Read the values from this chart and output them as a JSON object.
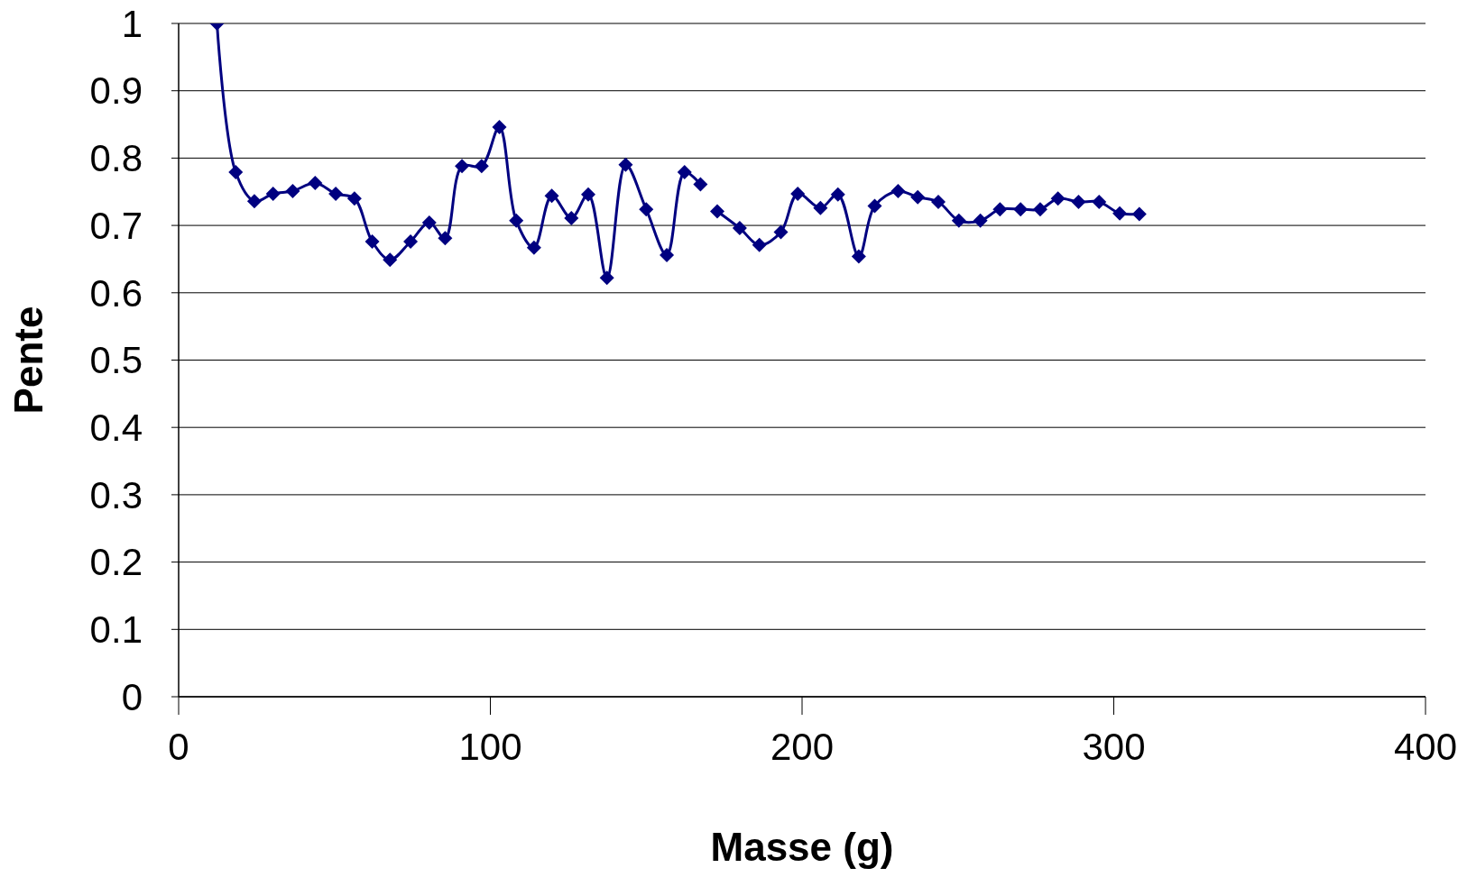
{
  "chart_data": {
    "type": "line",
    "xlabel": "Masse (g)",
    "ylabel": "Pente",
    "xlim": [
      0,
      400
    ],
    "xticks": [
      0,
      100,
      200,
      300,
      400
    ],
    "ylim": [
      0,
      1
    ],
    "yticks": [
      0,
      0.1,
      0.2,
      0.3,
      0.4,
      0.5,
      0.6,
      0.7,
      0.8,
      0.9,
      1
    ],
    "grid": "y",
    "marker": "diamond",
    "line_style": "solid",
    "series": [
      {
        "color": "#000080",
        "x": [
          12.3,
          18.3,
          24.3,
          30.3,
          36.6,
          43.8,
          50.4,
          56.4,
          62.1,
          67.8,
          74.4,
          80.4,
          85.5,
          90.9,
          97.2,
          102.9,
          108.3,
          114.0,
          119.7,
          126.0,
          131.4,
          137.4,
          143.4,
          150.0,
          156.6,
          162.3,
          167.4,
          170,
          172.8,
          180.0,
          186.3,
          193.2,
          198.6,
          205.9,
          211.5,
          218.2,
          223.3,
          230.8,
          237.1,
          243.7,
          250.3,
          257.2,
          263.5,
          270.1,
          276.4,
          282.1,
          288.7,
          295.3,
          301.9,
          308.2
        ],
        "values": [
          1.0,
          0.779,
          0.736,
          0.747,
          0.751,
          0.763,
          0.747,
          0.74,
          0.676,
          0.649,
          0.676,
          0.704,
          0.681,
          0.788,
          0.788,
          0.846,
          0.707,
          0.667,
          0.744,
          0.711,
          0.746,
          0.622,
          0.79,
          0.724,
          0.656,
          0.779,
          0.761,
          null,
          0.721,
          0.696,
          0.671,
          0.69,
          0.747,
          0.726,
          0.746,
          0.654,
          0.729,
          0.751,
          0.742,
          0.735,
          0.707,
          0.707,
          0.724,
          0.724,
          0.724,
          0.74,
          0.735,
          0.735,
          0.718,
          0.717
        ]
      }
    ]
  }
}
